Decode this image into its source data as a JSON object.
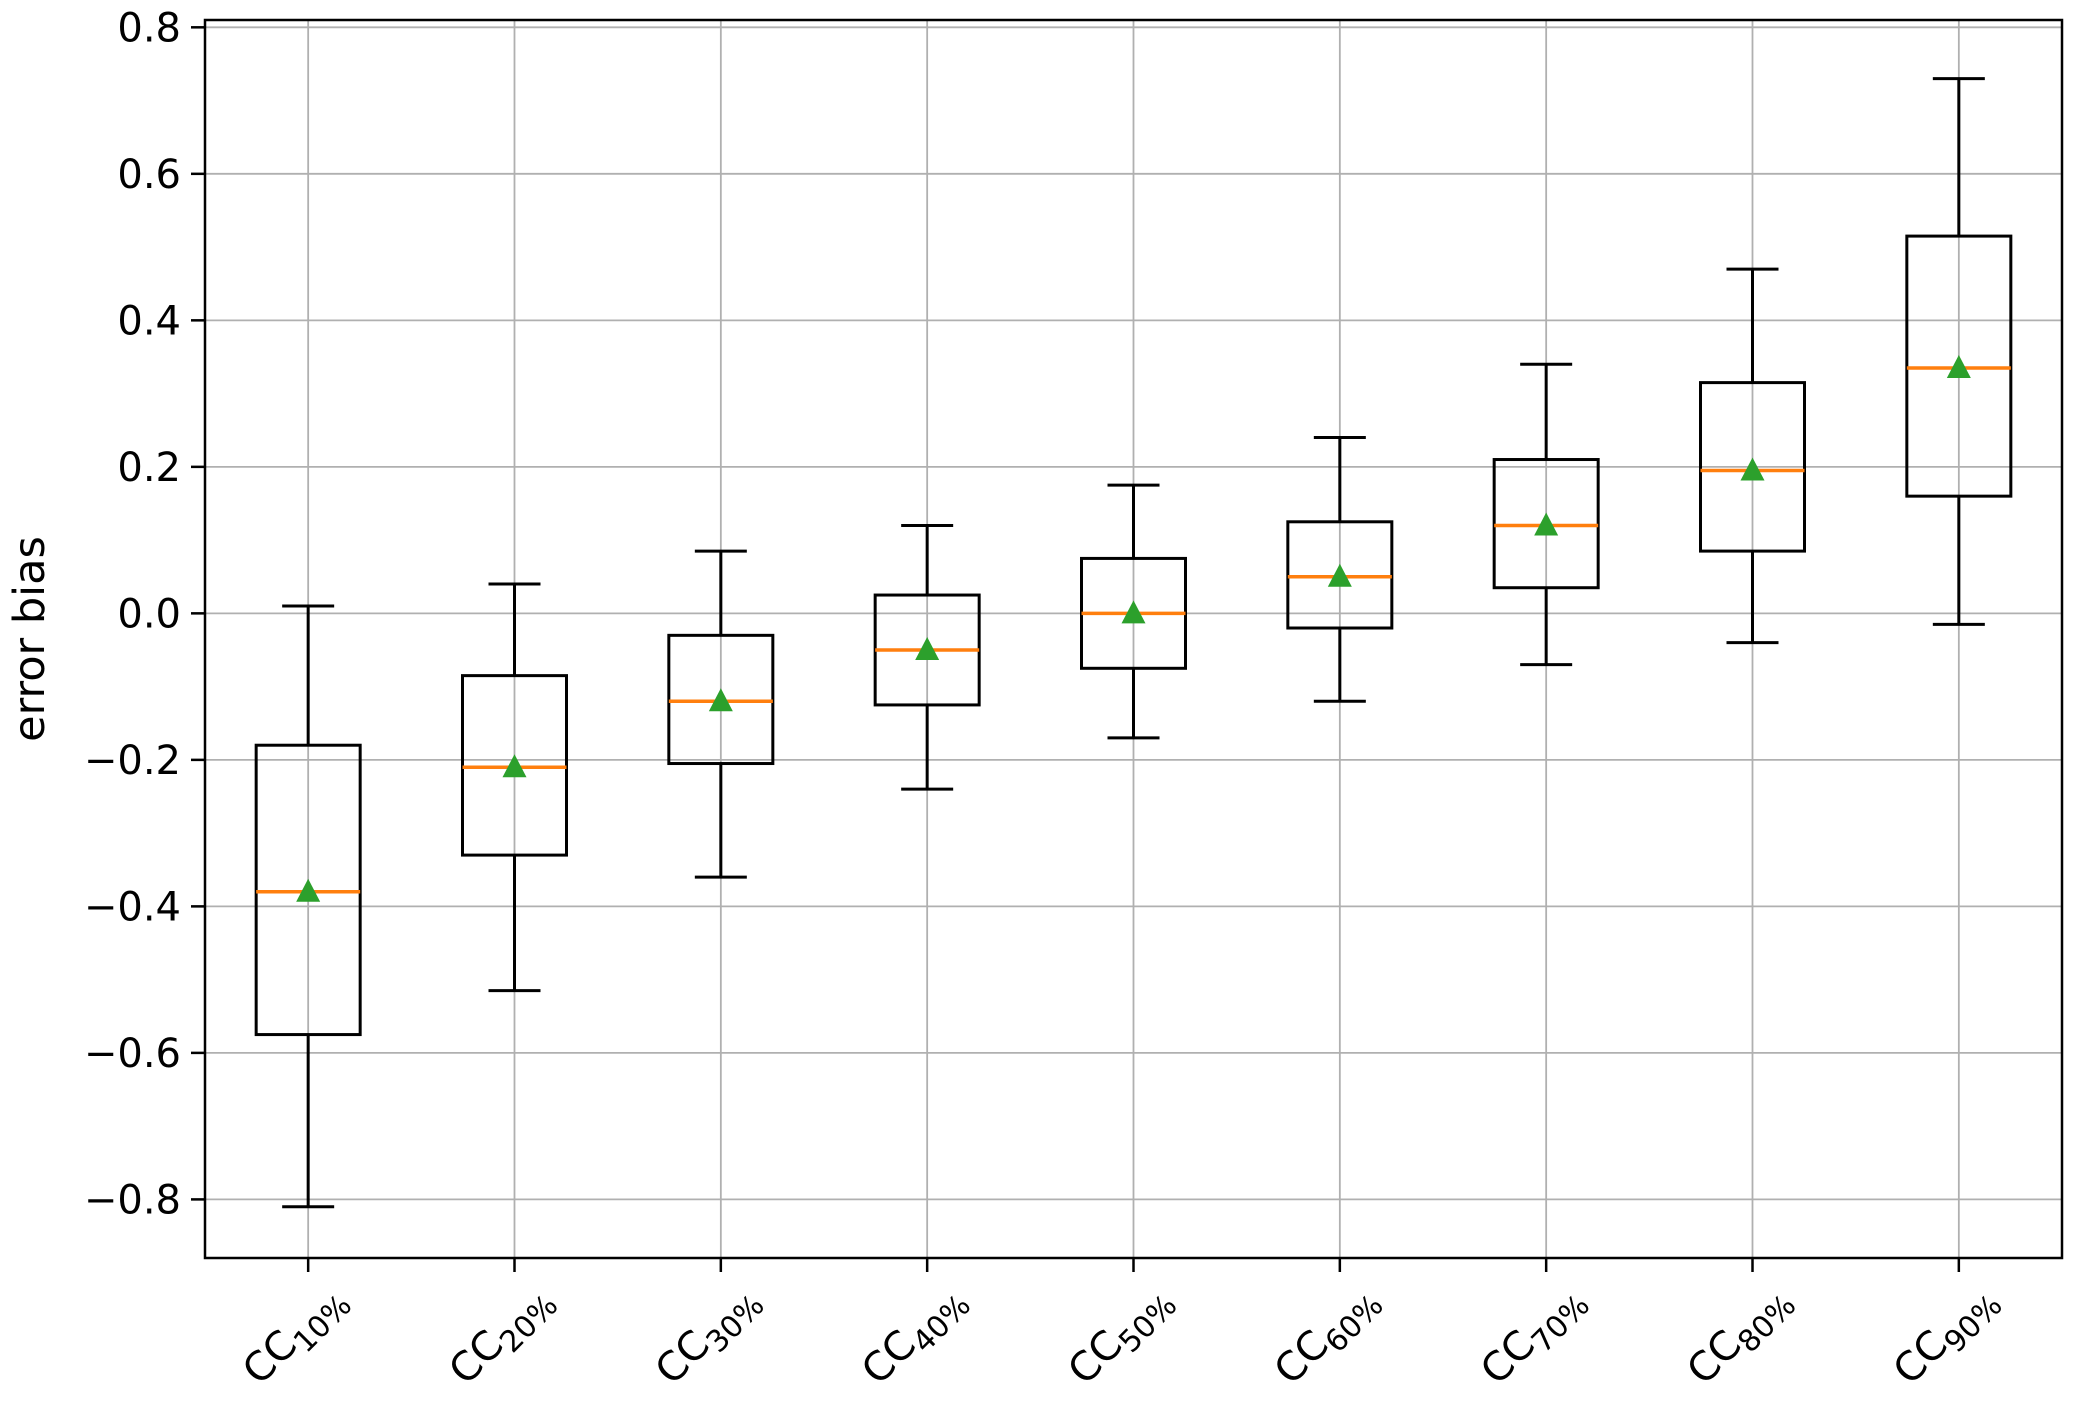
{
  "page": {
    "background": "#ffffff"
  },
  "chart_data": {
    "type": "boxplot",
    "title": "",
    "xlabel": "",
    "ylabel": "error bias",
    "ylim": [
      -0.88,
      0.81
    ],
    "yticks": [
      -0.8,
      -0.6,
      -0.4,
      -0.2,
      0.0,
      0.2,
      0.4,
      0.6,
      0.8
    ],
    "grid": true,
    "legend_position": "none",
    "x_tick_rotation_deg": 45,
    "categories": [
      {
        "base": "CC",
        "sub": "10%"
      },
      {
        "base": "CC",
        "sub": "20%"
      },
      {
        "base": "CC",
        "sub": "30%"
      },
      {
        "base": "CC",
        "sub": "40%"
      },
      {
        "base": "CC",
        "sub": "50%"
      },
      {
        "base": "CC",
        "sub": "60%"
      },
      {
        "base": "CC",
        "sub": "70%"
      },
      {
        "base": "CC",
        "sub": "80%"
      },
      {
        "base": "CC",
        "sub": "90%"
      }
    ],
    "series": [
      {
        "label": "CC10%",
        "whisker_low": -0.81,
        "q1": -0.575,
        "median": -0.38,
        "mean": -0.38,
        "q3": -0.18,
        "whisker_high": 0.01
      },
      {
        "label": "CC20%",
        "whisker_low": -0.515,
        "q1": -0.33,
        "median": -0.21,
        "mean": -0.21,
        "q3": -0.085,
        "whisker_high": 0.04
      },
      {
        "label": "CC30%",
        "whisker_low": -0.36,
        "q1": -0.205,
        "median": -0.12,
        "mean": -0.12,
        "q3": -0.03,
        "whisker_high": 0.085
      },
      {
        "label": "CC40%",
        "whisker_low": -0.24,
        "q1": -0.125,
        "median": -0.05,
        "mean": -0.05,
        "q3": 0.025,
        "whisker_high": 0.12
      },
      {
        "label": "CC50%",
        "whisker_low": -0.17,
        "q1": -0.075,
        "median": 0.0,
        "mean": 0.0,
        "q3": 0.075,
        "whisker_high": 0.175
      },
      {
        "label": "CC60%",
        "whisker_low": -0.12,
        "q1": -0.02,
        "median": 0.05,
        "mean": 0.05,
        "q3": 0.125,
        "whisker_high": 0.24
      },
      {
        "label": "CC70%",
        "whisker_low": -0.07,
        "q1": 0.035,
        "median": 0.12,
        "mean": 0.12,
        "q3": 0.21,
        "whisker_high": 0.34
      },
      {
        "label": "CC80%",
        "whisker_low": -0.04,
        "q1": 0.085,
        "median": 0.195,
        "mean": 0.195,
        "q3": 0.315,
        "whisker_high": 0.47
      },
      {
        "label": "CC90%",
        "whisker_low": -0.015,
        "q1": 0.16,
        "median": 0.335,
        "mean": 0.335,
        "q3": 0.515,
        "whisker_high": 0.73
      }
    ],
    "colors": {
      "box_line": "#000000",
      "whisker_line": "#000000",
      "median_line": "#ff7f0e",
      "mean_marker": "#2ca02c",
      "grid_line": "#b0b0b0",
      "axis_line": "#000000",
      "tick_label": "#000000",
      "background": "#ffffff"
    }
  }
}
